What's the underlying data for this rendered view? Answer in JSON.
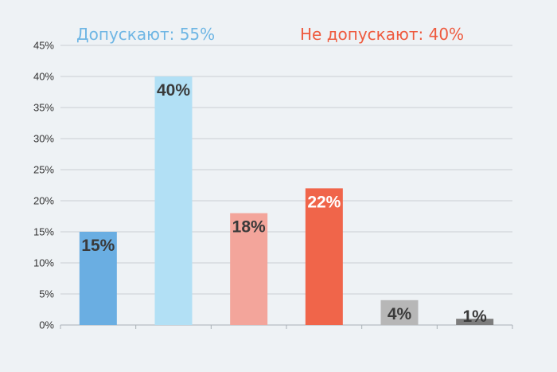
{
  "chart_data": {
    "type": "bar",
    "categories": [
      "",
      "",
      "",
      "",
      "",
      ""
    ],
    "values": [
      15,
      40,
      18,
      22,
      4,
      1
    ],
    "value_labels": [
      "15%",
      "40%",
      "18%",
      "22%",
      "4%",
      "1%"
    ],
    "colors": [
      "#6aaee2",
      "#b2e0f5",
      "#f3a59b",
      "#f0654a",
      "#b7b7b7",
      "#7d7d7d"
    ],
    "label_colors": [
      "#3a3a3a",
      "#3a3a3a",
      "#3a3a3a",
      "#ffffff",
      "#3a3a3a",
      "#3a3a3a"
    ],
    "ylim": [
      0,
      45
    ],
    "y_ticks": [
      0,
      5,
      10,
      15,
      20,
      25,
      30,
      35,
      40,
      45
    ],
    "y_tick_suffix": "%",
    "grid": true,
    "legend": [
      {
        "text": "Допускают: 55%",
        "color": "#6fb6e4"
      },
      {
        "text": "Не допускают: 40%",
        "color": "#ee5a3e"
      }
    ]
  }
}
